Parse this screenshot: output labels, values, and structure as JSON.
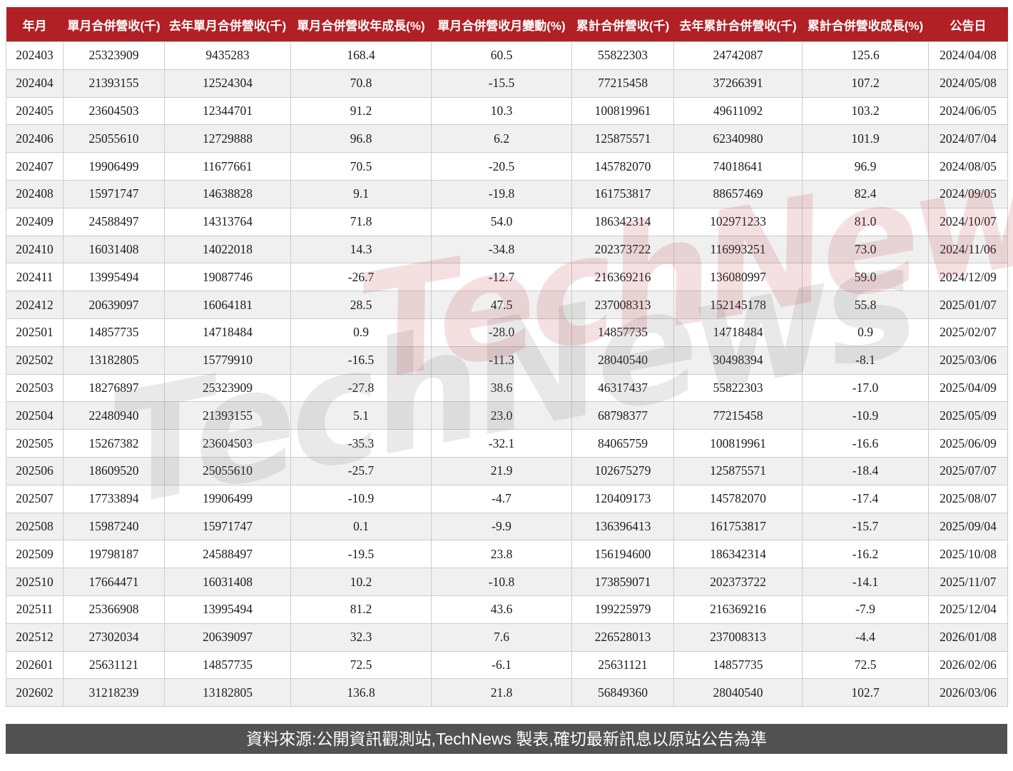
{
  "chart_data": {
    "type": "table",
    "columns": [
      "年月",
      "單月合併營收(千)",
      "去年單月合併營收(千)",
      "單月合併營收年成長(%)",
      "單月合併營收月變動(%)",
      "累計合併營收(千)",
      "去年累計合併營收(千)",
      "累計合併營收成長(%)",
      "公告日"
    ],
    "rows": [
      [
        "202403",
        "25323909",
        "9435283",
        "168.4",
        "60.5",
        "55822303",
        "24742087",
        "125.6",
        "2024/04/08"
      ],
      [
        "202404",
        "21393155",
        "12524304",
        "70.8",
        "-15.5",
        "77215458",
        "37266391",
        "107.2",
        "2024/05/08"
      ],
      [
        "202405",
        "23604503",
        "12344701",
        "91.2",
        "10.3",
        "100819961",
        "49611092",
        "103.2",
        "2024/06/05"
      ],
      [
        "202406",
        "25055610",
        "12729888",
        "96.8",
        "6.2",
        "125875571",
        "62340980",
        "101.9",
        "2024/07/04"
      ],
      [
        "202407",
        "19906499",
        "11677661",
        "70.5",
        "-20.5",
        "145782070",
        "74018641",
        "96.9",
        "2024/08/05"
      ],
      [
        "202408",
        "15971747",
        "14638828",
        "9.1",
        "-19.8",
        "161753817",
        "88657469",
        "82.4",
        "2024/09/05"
      ],
      [
        "202409",
        "24588497",
        "14313764",
        "71.8",
        "54.0",
        "186342314",
        "102971233",
        "81.0",
        "2024/10/07"
      ],
      [
        "202410",
        "16031408",
        "14022018",
        "14.3",
        "-34.8",
        "202373722",
        "116993251",
        "73.0",
        "2024/11/06"
      ],
      [
        "202411",
        "13995494",
        "19087746",
        "-26.7",
        "-12.7",
        "216369216",
        "136080997",
        "59.0",
        "2024/12/09"
      ],
      [
        "202412",
        "20639097",
        "16064181",
        "28.5",
        "47.5",
        "237008313",
        "152145178",
        "55.8",
        "2025/01/07"
      ],
      [
        "202501",
        "14857735",
        "14718484",
        "0.9",
        "-28.0",
        "14857735",
        "14718484",
        "0.9",
        "2025/02/07"
      ],
      [
        "202502",
        "13182805",
        "15779910",
        "-16.5",
        "-11.3",
        "28040540",
        "30498394",
        "-8.1",
        "2025/03/06"
      ],
      [
        "202503",
        "18276897",
        "25323909",
        "-27.8",
        "38.6",
        "46317437",
        "55822303",
        "-17.0",
        "2025/04/09"
      ],
      [
        "202504",
        "22480940",
        "21393155",
        "5.1",
        "23.0",
        "68798377",
        "77215458",
        "-10.9",
        "2025/05/09"
      ],
      [
        "202505",
        "15267382",
        "23604503",
        "-35.3",
        "-32.1",
        "84065759",
        "100819961",
        "-16.6",
        "2025/06/09"
      ],
      [
        "202506",
        "18609520",
        "25055610",
        "-25.7",
        "21.9",
        "102675279",
        "125875571",
        "-18.4",
        "2025/07/07"
      ],
      [
        "202507",
        "17733894",
        "19906499",
        "-10.9",
        "-4.7",
        "120409173",
        "145782070",
        "-17.4",
        "2025/08/07"
      ],
      [
        "202508",
        "15987240",
        "15971747",
        "0.1",
        "-9.9",
        "136396413",
        "161753817",
        "-15.7",
        "2025/09/04"
      ],
      [
        "202509",
        "19798187",
        "24588497",
        "-19.5",
        "23.8",
        "156194600",
        "186342314",
        "-16.2",
        "2025/10/08"
      ],
      [
        "202510",
        "17664471",
        "16031408",
        "10.2",
        "-10.8",
        "173859071",
        "202373722",
        "-14.1",
        "2025/11/07"
      ],
      [
        "202511",
        "25366908",
        "13995494",
        "81.2",
        "43.6",
        "199225979",
        "216369216",
        "-7.9",
        "2025/12/04"
      ],
      [
        "202512",
        "27302034",
        "20639097",
        "32.3",
        "7.6",
        "226528013",
        "237008313",
        "-4.4",
        "2026/01/08"
      ],
      [
        "202601",
        "25631121",
        "14857735",
        "72.5",
        "-6.1",
        "25631121",
        "14857735",
        "72.5",
        "2026/02/06"
      ],
      [
        "202602",
        "31218239",
        "13182805",
        "136.8",
        "21.8",
        "56849360",
        "28040540",
        "102.7",
        "2026/03/06"
      ]
    ]
  },
  "footer": {
    "text": "資料來源:公開資訊觀測站,TechNews 製表,確切最新訊息以原站公告為準"
  },
  "watermarks": {
    "primary": "TechNews",
    "secondary": "TechNews"
  },
  "colors": {
    "header_bg": "#b12025",
    "header_text": "#ffffff",
    "row_bg": "#ffffff",
    "row_alt_bg": "#f0f0f0",
    "cell_border": "#cccccc",
    "footer_bg": "#525252",
    "footer_text": "#ffffff",
    "watermark_pink": "rgba(190,60,66,0.16)",
    "watermark_gray": "rgba(120,120,120,0.16)"
  }
}
